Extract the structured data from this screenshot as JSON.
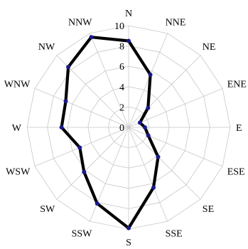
{
  "chart_data": {
    "type": "radar",
    "categories": [
      "N",
      "NNE",
      "NE",
      "ENE",
      "E",
      "ESE",
      "SE",
      "SSE",
      "S",
      "SSW",
      "SW",
      "WSW",
      "W",
      "WNW",
      "NW",
      "NNW"
    ],
    "series": [
      {
        "values": [
          8.5,
          5.6,
          2.7,
          1.2,
          1.6,
          2.1,
          4.1,
          6.4,
          9.9,
          8.1,
          6.2,
          5.2,
          6.6,
          6.7,
          8.4,
          9.6
        ],
        "color": "#000000",
        "marker_color": "#1a1a8c"
      }
    ],
    "rlim": [
      0,
      10
    ],
    "r_ticks": [
      0,
      2,
      4,
      6,
      8,
      10
    ],
    "grid": true,
    "grid_shape": "polygon"
  }
}
